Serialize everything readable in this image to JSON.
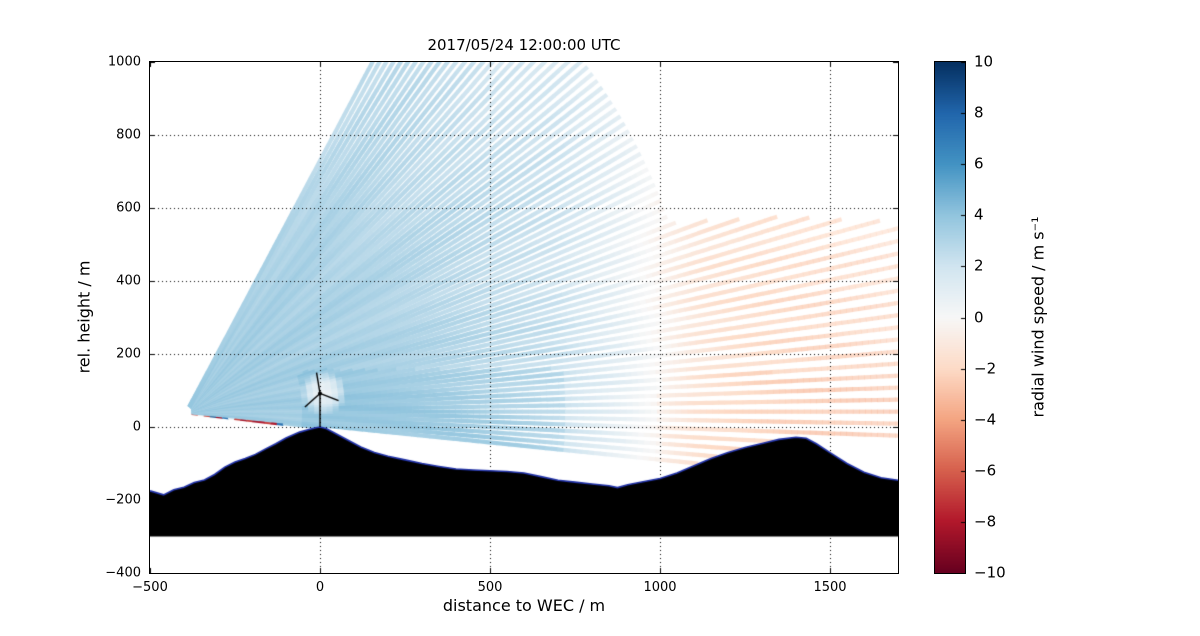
{
  "figure": {
    "background": "#ffffff"
  },
  "chart_data": {
    "type": "heatmap",
    "subtype": "lidar-rhi-scan",
    "title": "2017/05/24 12:00:00 UTC",
    "xlabel": "distance to WEC / m",
    "ylabel": "rel. height / m",
    "xlim": [
      -500,
      1700
    ],
    "ylim": [
      -400,
      1000
    ],
    "x_ticks": [
      -500,
      0,
      500,
      1000,
      1500
    ],
    "y_ticks": [
      -400,
      -200,
      0,
      200,
      400,
      600,
      800,
      1000
    ],
    "grid": true,
    "grid_style": "dotted",
    "colorbar": {
      "label": "radial wind speed / m s⁻¹",
      "range": [
        -10,
        10
      ],
      "ticks": [
        10,
        8,
        6,
        4,
        2,
        0,
        -2,
        -4,
        -6,
        -8,
        -10
      ],
      "colormap": "RdBu",
      "colormap_stops": [
        "#67001f",
        "#b2182b",
        "#d6604d",
        "#f4a582",
        "#fddbc7",
        "#f7f7f7",
        "#d1e5f0",
        "#92c5de",
        "#4393c3",
        "#2166ac",
        "#053061"
      ]
    },
    "scan": {
      "origin": [
        -392,
        42
      ],
      "elev_min_deg": -6.3,
      "elev_max_deg": 60.5,
      "elev_step_deg": 0.9,
      "range_min_m": 25,
      "range_near_m": 1505,
      "range_far_m": 2350,
      "gate_m": 18,
      "hard_target_range_m": 290
    },
    "wind_field": {
      "profile_x": [
        -500,
        0,
        400,
        700,
        900,
        1000,
        1100,
        1300,
        1500,
        1700
      ],
      "profile_v": [
        3.4,
        3.2,
        2.8,
        2.2,
        0.8,
        -0.3,
        -1.2,
        -1.9,
        -2.3,
        -2.6
      ],
      "rotor_zone": {
        "x": 10,
        "y": 95,
        "rx": 70,
        "ry": 60
      }
    },
    "terrain": {
      "fill_color": "#000000",
      "outline_color": "#2233aa",
      "base_y": -300,
      "points": [
        [
          -500,
          -175
        ],
        [
          -460,
          -186
        ],
        [
          -430,
          -172
        ],
        [
          -400,
          -165
        ],
        [
          -370,
          -152
        ],
        [
          -340,
          -145
        ],
        [
          -310,
          -130
        ],
        [
          -280,
          -110
        ],
        [
          -250,
          -96
        ],
        [
          -220,
          -86
        ],
        [
          -190,
          -75
        ],
        [
          -160,
          -60
        ],
        [
          -130,
          -46
        ],
        [
          -100,
          -30
        ],
        [
          -60,
          -14
        ],
        [
          -30,
          -6
        ],
        [
          -12,
          -2
        ],
        [
          0,
          0
        ],
        [
          18,
          -4
        ],
        [
          40,
          -15
        ],
        [
          80,
          -35
        ],
        [
          120,
          -55
        ],
        [
          160,
          -70
        ],
        [
          200,
          -80
        ],
        [
          250,
          -90
        ],
        [
          300,
          -100
        ],
        [
          350,
          -108
        ],
        [
          400,
          -115
        ],
        [
          450,
          -118
        ],
        [
          500,
          -120
        ],
        [
          550,
          -122
        ],
        [
          600,
          -126
        ],
        [
          650,
          -136
        ],
        [
          700,
          -146
        ],
        [
          750,
          -151
        ],
        [
          800,
          -156
        ],
        [
          850,
          -161
        ],
        [
          875,
          -166
        ],
        [
          905,
          -158
        ],
        [
          950,
          -150
        ],
        [
          1000,
          -141
        ],
        [
          1050,
          -126
        ],
        [
          1100,
          -106
        ],
        [
          1150,
          -86
        ],
        [
          1200,
          -70
        ],
        [
          1250,
          -56
        ],
        [
          1300,
          -45
        ],
        [
          1350,
          -34
        ],
        [
          1400,
          -28
        ],
        [
          1430,
          -31
        ],
        [
          1460,
          -46
        ],
        [
          1500,
          -70
        ],
        [
          1550,
          -100
        ],
        [
          1600,
          -124
        ],
        [
          1650,
          -139
        ],
        [
          1700,
          -146
        ]
      ]
    },
    "turbine": {
      "x": 0,
      "base_y": 0,
      "hub_height_m": 92,
      "rotor_radius_m": 58,
      "blade_angles_deg": [
        100,
        220,
        340
      ],
      "color": "#000000"
    }
  }
}
